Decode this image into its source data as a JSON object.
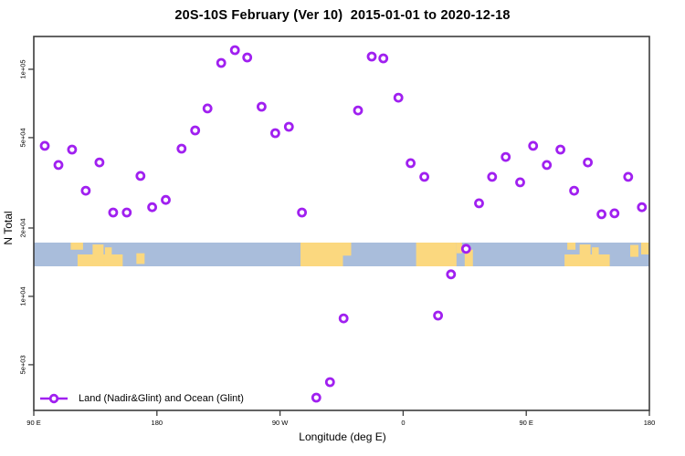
{
  "title": "20S-10S February (Ver 10)  2015-01-01 to 2020-12-18",
  "axes": {
    "x_label": "Longitude (deg E)",
    "y_label": "N Total"
  },
  "legend": {
    "label": "Land (Nadir&Glint) and Ocean (Glint)",
    "marker_icon": "open-circle-on-line"
  },
  "colors": {
    "marker": "#a020f0",
    "ocean": "#a9bddb",
    "land": "#fbd87f",
    "frame": "#3c3c3c",
    "background": "#ffffff"
  },
  "chart_data": {
    "type": "scatter",
    "title": "20S-10S February (Ver 10)  2015-01-01 to 2020-12-18",
    "xlabel": "Longitude (deg E)",
    "ylabel": "N Total",
    "x_axis": {
      "note": "longitude axis wraps the globe: 90E eastward through 180, 90W, 0, 90E to 180 (450 deg span, plotted as 90..540)",
      "xlim": [
        90,
        540
      ],
      "tick_positions": [
        90,
        180,
        270,
        360,
        450,
        540
      ],
      "tick_labels": [
        "90 E",
        "180",
        "90 W",
        "0",
        "90 E",
        "180"
      ]
    },
    "y_axis": {
      "scale": "log",
      "ylim": [
        3100,
        140000
      ],
      "tick_values": [
        5000,
        10000,
        20000,
        50000,
        100000
      ],
      "tick_labels": [
        "5e+03",
        "1e+04",
        "2e+04",
        "5e+04",
        "1e+05"
      ]
    },
    "grid": false,
    "legend_position": "bottom-left-inside",
    "series": [
      {
        "name": "Land (Nadir&Glint) and Ocean (Glint)",
        "marker": "open-circle",
        "columns": [
          "longitude_axis_deg",
          "n_total"
        ],
        "points": [
          [
            98,
            46000
          ],
          [
            108,
            37900
          ],
          [
            118,
            44300
          ],
          [
            128,
            29200
          ],
          [
            138,
            38900
          ],
          [
            148,
            23400
          ],
          [
            158,
            23400
          ],
          [
            168,
            33900
          ],
          [
            176.5,
            24700
          ],
          [
            186.5,
            26600
          ],
          [
            198,
            44700
          ],
          [
            208,
            53800
          ],
          [
            217,
            67200
          ],
          [
            227,
            106600
          ],
          [
            237,
            121400
          ],
          [
            246,
            112700
          ],
          [
            256.5,
            68400
          ],
          [
            266.5,
            52300
          ],
          [
            276.5,
            55800
          ],
          [
            286,
            23400
          ],
          [
            296.5,
            3580
          ],
          [
            306.5,
            4190
          ],
          [
            316.5,
            8000
          ],
          [
            327,
            65900
          ],
          [
            337,
            113800
          ],
          [
            345.5,
            111700
          ],
          [
            356.5,
            75000
          ],
          [
            365.5,
            38600
          ],
          [
            375.5,
            33600
          ],
          [
            385.5,
            8230
          ],
          [
            395,
            12500
          ],
          [
            406,
            16200
          ],
          [
            415.5,
            25700
          ],
          [
            425,
            33600
          ],
          [
            435,
            41100
          ],
          [
            445.5,
            31800
          ],
          [
            455,
            46000
          ],
          [
            465,
            37900
          ],
          [
            475,
            44300
          ],
          [
            485,
            29200
          ],
          [
            495,
            38900
          ],
          [
            505,
            23000
          ],
          [
            514.5,
            23200
          ],
          [
            524.5,
            33600
          ],
          [
            534.5,
            24700
          ]
        ]
      }
    ]
  },
  "map_strip": {
    "description": "horizontal world-map band for the 20S-10S latitude zone (ocean blue, land yellow)",
    "land_patches_columns": [
      "lon_start_deg",
      "lon_end_deg",
      "top_fraction",
      "bottom_fraction"
    ],
    "land_patches": [
      [
        117,
        126,
        0.0,
        0.3
      ],
      [
        122,
        155,
        0.5,
        1.0
      ],
      [
        133,
        141,
        0.08,
        1.0
      ],
      [
        142,
        147,
        0.2,
        1.0
      ],
      [
        165,
        171,
        0.45,
        0.9
      ],
      [
        285,
        316,
        0.0,
        1.0
      ],
      [
        316,
        322,
        0.0,
        0.55
      ],
      [
        369.5,
        399,
        0.0,
        1.0
      ],
      [
        399,
        403,
        0.0,
        0.45
      ],
      [
        405,
        411,
        0.3,
        1.0
      ],
      [
        480,
        486,
        0.0,
        0.3
      ],
      [
        478,
        511,
        0.5,
        1.0
      ],
      [
        489,
        497,
        0.08,
        1.0
      ],
      [
        498,
        503,
        0.2,
        1.0
      ],
      [
        526,
        532,
        0.1,
        0.6
      ],
      [
        534,
        540,
        0.0,
        0.5
      ]
    ]
  }
}
